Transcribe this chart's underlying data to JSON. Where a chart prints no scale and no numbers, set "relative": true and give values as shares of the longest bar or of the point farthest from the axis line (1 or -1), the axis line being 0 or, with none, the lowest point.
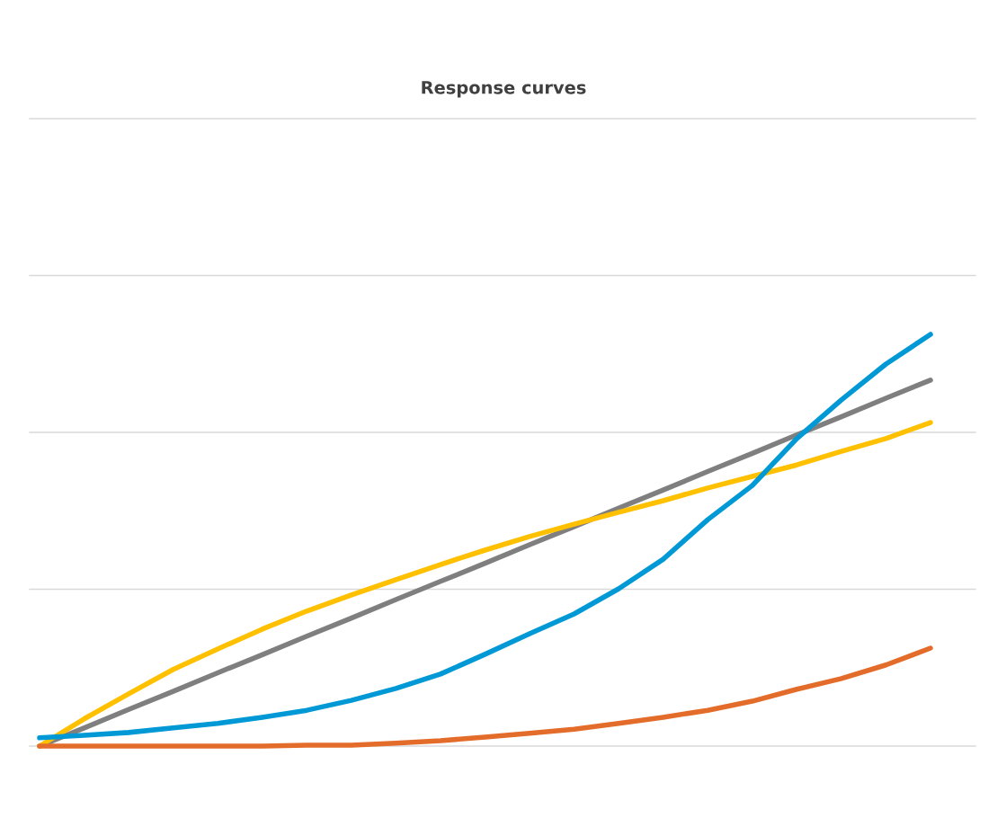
{
  "chart_data": {
    "type": "line",
    "title": "Response curves",
    "relative": true,
    "marker": "none",
    "ref_lines": [
      {
        "axis": "y",
        "value": 0,
        "color": "#d9d9d9"
      },
      {
        "axis": "y",
        "value": 0.381,
        "color": "#d9d9d9"
      },
      {
        "axis": "y",
        "value": 0.762,
        "color": "#d9d9d9"
      },
      {
        "axis": "y",
        "value": 1.143,
        "color": "#d9d9d9"
      },
      {
        "axis": "y",
        "value": 1.524,
        "color": "#d9d9d9"
      }
    ],
    "line_style": "solid",
    "categories": [
      null,
      null,
      null,
      null,
      null,
      null,
      null,
      null,
      null,
      null,
      null,
      null,
      null,
      null,
      null,
      null,
      null,
      null,
      null,
      null,
      null
    ],
    "series": [
      {
        "color": "#7f7f7f",
        "values": [
          0,
          0.044,
          0.089,
          0.133,
          0.178,
          0.222,
          0.267,
          0.311,
          0.356,
          0.4,
          0.444,
          0.489,
          0.533,
          0.578,
          0.622,
          0.667,
          0.711,
          0.756,
          0.8,
          0.845,
          0.889
        ]
      },
      {
        "color": "#ffc000",
        "values": [
          0,
          0.066,
          0.127,
          0.186,
          0.236,
          0.284,
          0.328,
          0.367,
          0.404,
          0.441,
          0.476,
          0.509,
          0.539,
          0.568,
          0.596,
          0.627,
          0.655,
          0.683,
          0.716,
          0.747,
          0.786
        ]
      },
      {
        "color": "#e36c2a",
        "values": [
          0,
          0,
          0,
          0,
          0,
          0,
          0.002,
          0.002,
          0.007,
          0.013,
          0.022,
          0.031,
          0.041,
          0.055,
          0.07,
          0.087,
          0.109,
          0.138,
          0.164,
          0.197,
          0.238
        ]
      },
      {
        "color": "#0099d6",
        "values": [
          0.02,
          0.026,
          0.033,
          0.044,
          0.055,
          0.07,
          0.087,
          0.111,
          0.14,
          0.175,
          0.223,
          0.273,
          0.321,
          0.382,
          0.454,
          0.55,
          0.633,
          0.747,
          0.841,
          0.928,
          1
        ]
      }
    ]
  }
}
